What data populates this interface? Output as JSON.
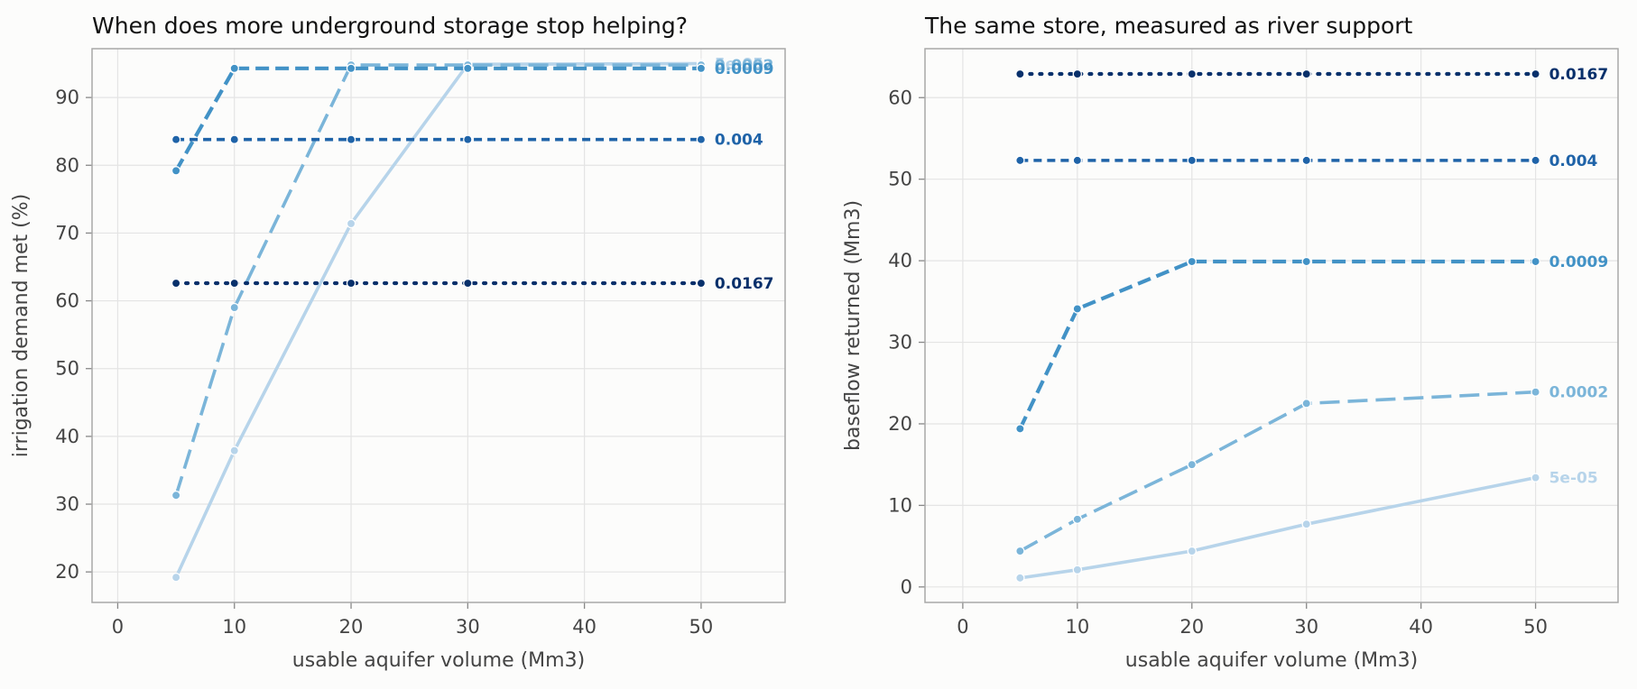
{
  "chart_data": [
    {
      "type": "line",
      "title": "When does more underground storage stop helping?",
      "xlabel": "usable aquifer volume (Mm3)",
      "ylabel": "irrigation demand met (%)",
      "xlim": [
        -2.2,
        57.2
      ],
      "ylim": [
        15.5,
        97.2
      ],
      "xticks": [
        0,
        10,
        20,
        30,
        40,
        50
      ],
      "yticks": [
        20,
        30,
        40,
        50,
        60,
        70,
        80,
        90
      ],
      "grid": true,
      "x": [
        5,
        10,
        20,
        30,
        50
      ],
      "series": [
        {
          "name": "5e-05",
          "color": "#b7d4ea",
          "style": "solid",
          "values": [
            19.2,
            37.9,
            71.4,
            94.9,
            95.0
          ]
        },
        {
          "name": "0.0002",
          "color": "#7bb5d9",
          "style": "longdash",
          "values": [
            31.3,
            59.0,
            94.8,
            94.8,
            94.8
          ]
        },
        {
          "name": "0.0009",
          "color": "#4292c6",
          "style": "dash",
          "values": [
            79.2,
            94.3,
            94.3,
            94.3,
            94.3
          ]
        },
        {
          "name": "0.004",
          "color": "#1f63a8",
          "style": "shortdash",
          "values": [
            83.8,
            83.8,
            83.8,
            83.8,
            83.8
          ]
        },
        {
          "name": "0.0167",
          "color": "#08306b",
          "style": "dot",
          "values": [
            62.6,
            62.6,
            62.6,
            62.6,
            62.6
          ]
        }
      ]
    },
    {
      "type": "line",
      "title": "The same store, measured as river support",
      "xlabel": "usable aquifer volume (Mm3)",
      "ylabel": "baseflow returned (Mm3)",
      "xlim": [
        -3.3,
        57.2
      ],
      "ylim": [
        -1.9,
        66.0
      ],
      "xticks": [
        0,
        10,
        20,
        30,
        40,
        50
      ],
      "yticks": [
        0,
        10,
        20,
        30,
        40,
        50,
        60
      ],
      "grid": true,
      "x": [
        5,
        10,
        20,
        30,
        50
      ],
      "series": [
        {
          "name": "5e-05",
          "color": "#b7d4ea",
          "style": "solid",
          "values": [
            1.1,
            2.1,
            4.4,
            7.7,
            13.4
          ]
        },
        {
          "name": "0.0002",
          "color": "#7bb5d9",
          "style": "longdash",
          "values": [
            4.4,
            8.3,
            15.0,
            22.5,
            23.9
          ]
        },
        {
          "name": "0.0009",
          "color": "#4292c6",
          "style": "dash",
          "values": [
            19.4,
            34.1,
            39.9,
            39.9,
            39.9
          ]
        },
        {
          "name": "0.004",
          "color": "#1f63a8",
          "style": "shortdash",
          "values": [
            52.3,
            52.3,
            52.3,
            52.3,
            52.3
          ]
        },
        {
          "name": "0.0167",
          "color": "#08306b",
          "style": "dot",
          "values": [
            62.9,
            62.9,
            62.9,
            62.9,
            62.9
          ]
        }
      ]
    }
  ]
}
